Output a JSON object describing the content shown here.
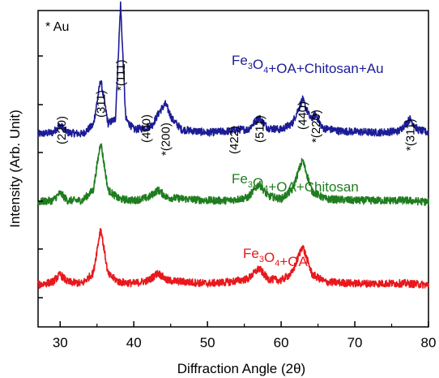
{
  "chart_data": {
    "type": "line",
    "title": "",
    "xlabel": "Diffraction Angle (2θ)",
    "ylabel": "Intensity (Arb. Unit)",
    "xlim": [
      27,
      80
    ],
    "x_ticks": [
      30,
      40,
      50,
      60,
      70,
      80
    ],
    "y_ticks": "unlabeled",
    "grid": false,
    "note": "* Au",
    "series": [
      {
        "label_parts": [
          [
            "Fe",
            ""
          ],
          [
            "3",
            "sub"
          ],
          [
            "O",
            ""
          ],
          [
            "4",
            "sub"
          ],
          [
            "+OA+Chitosan+Au",
            ""
          ]
        ],
        "color": "#1c1c96",
        "baseline": 1.0,
        "points": [
          [
            27,
            0.02
          ],
          [
            29,
            0.03
          ],
          [
            30,
            0.08
          ],
          [
            31,
            0.03
          ],
          [
            33,
            0.02
          ],
          [
            34.5,
            0.08
          ],
          [
            35.5,
            0.38
          ],
          [
            36.5,
            0.09
          ],
          [
            37.5,
            0.12
          ],
          [
            38.2,
            0.88
          ],
          [
            38.9,
            0.12
          ],
          [
            40,
            0.05
          ],
          [
            41.5,
            0.06
          ],
          [
            42.5,
            0.08
          ],
          [
            43.5,
            0.17
          ],
          [
            44.3,
            0.22
          ],
          [
            45.2,
            0.12
          ],
          [
            46.5,
            0.05
          ],
          [
            50,
            0.03
          ],
          [
            53,
            0.04
          ],
          [
            54,
            0.05
          ],
          [
            55.5,
            0.05
          ],
          [
            57,
            0.13
          ],
          [
            58.2,
            0.06
          ],
          [
            60,
            0.05
          ],
          [
            61.5,
            0.09
          ],
          [
            62.9,
            0.25
          ],
          [
            64.0,
            0.12
          ],
          [
            64.7,
            0.15
          ],
          [
            65.6,
            0.06
          ],
          [
            68,
            0.04
          ],
          [
            73,
            0.03
          ],
          [
            76,
            0.04
          ],
          [
            77.5,
            0.12
          ],
          [
            78.5,
            0.05
          ],
          [
            80,
            0.03
          ]
        ]
      },
      {
        "label_parts": [
          [
            "Fe",
            ""
          ],
          [
            "3",
            "sub"
          ],
          [
            "O",
            ""
          ],
          [
            "4",
            "sub"
          ],
          [
            "+OA+Chitosan",
            ""
          ]
        ],
        "color": "#1f7d1f",
        "baseline": 0.55,
        "points": [
          [
            27,
            0.02
          ],
          [
            29,
            0.03
          ],
          [
            30,
            0.08
          ],
          [
            31,
            0.03
          ],
          [
            33,
            0.03
          ],
          [
            34.5,
            0.1
          ],
          [
            35.5,
            0.42
          ],
          [
            36.5,
            0.1
          ],
          [
            38,
            0.04
          ],
          [
            40,
            0.03
          ],
          [
            42,
            0.05
          ],
          [
            43.3,
            0.1
          ],
          [
            44.5,
            0.05
          ],
          [
            47,
            0.04
          ],
          [
            50,
            0.03
          ],
          [
            53,
            0.03
          ],
          [
            55.5,
            0.05
          ],
          [
            57,
            0.14
          ],
          [
            58.2,
            0.06
          ],
          [
            60,
            0.04
          ],
          [
            61.5,
            0.1
          ],
          [
            62.9,
            0.3
          ],
          [
            64.2,
            0.09
          ],
          [
            66,
            0.04
          ],
          [
            70,
            0.03
          ],
          [
            74,
            0.03
          ],
          [
            77,
            0.03
          ],
          [
            80,
            0.02
          ]
        ]
      },
      {
        "label_parts": [
          [
            "Fe",
            ""
          ],
          [
            "3",
            "sub"
          ],
          [
            "O",
            ""
          ],
          [
            "4",
            "sub"
          ],
          [
            "+OA",
            ""
          ]
        ],
        "color": "#e8181c",
        "baseline": 0.0,
        "points": [
          [
            27,
            0.02
          ],
          [
            29,
            0.04
          ],
          [
            30,
            0.09
          ],
          [
            31,
            0.04
          ],
          [
            33,
            0.03
          ],
          [
            34.5,
            0.1
          ],
          [
            35.5,
            0.4
          ],
          [
            36.5,
            0.09
          ],
          [
            38,
            0.04
          ],
          [
            40,
            0.03
          ],
          [
            42,
            0.05
          ],
          [
            43.3,
            0.1
          ],
          [
            44.5,
            0.05
          ],
          [
            47,
            0.04
          ],
          [
            50,
            0.03
          ],
          [
            53,
            0.04
          ],
          [
            55.5,
            0.06
          ],
          [
            57,
            0.13
          ],
          [
            58.2,
            0.06
          ],
          [
            60,
            0.05
          ],
          [
            61.5,
            0.1
          ],
          [
            62.9,
            0.28
          ],
          [
            64.2,
            0.09
          ],
          [
            66,
            0.04
          ],
          [
            70,
            0.03
          ],
          [
            74,
            0.03
          ],
          [
            77,
            0.03
          ],
          [
            80,
            0.02
          ]
        ]
      }
    ],
    "peak_labels": [
      {
        "text": "(220)",
        "x": 30.2
      },
      {
        "text": "(311)",
        "x": 35.5
      },
      {
        "text": "*(111)",
        "x": 38.2
      },
      {
        "text": "(400)",
        "x": 41.7
      },
      {
        "text": "*(200)",
        "x": 44.3
      },
      {
        "text": "(422)",
        "x": 53.6
      },
      {
        "text": "(511)",
        "x": 57.1
      },
      {
        "text": "(440)",
        "x": 62.9
      },
      {
        "text": "*(220)",
        "x": 64.7
      },
      {
        "text": "*(311)",
        "x": 77.5
      }
    ]
  }
}
